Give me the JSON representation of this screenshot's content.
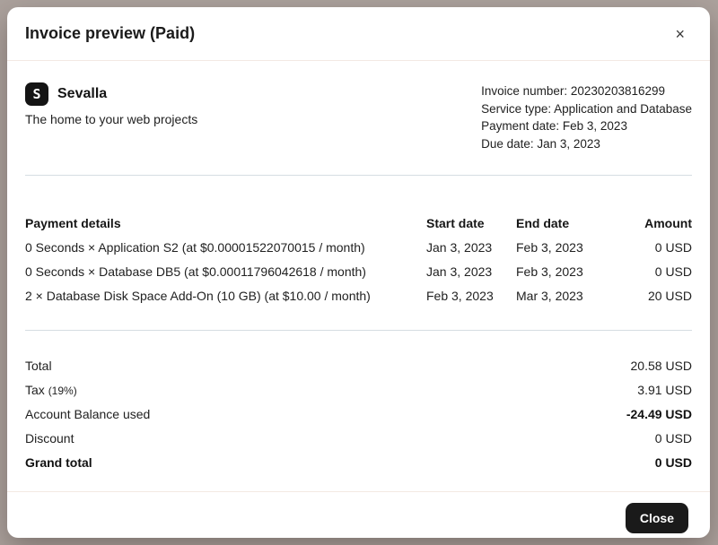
{
  "modal": {
    "title": "Invoice preview (Paid)",
    "close_icon": "×"
  },
  "brand": {
    "logo_glyph": "S",
    "name": "Sevalla",
    "tagline": "The home to your web projects"
  },
  "invoice_meta": {
    "lines": [
      "Invoice number: 20230203816299",
      "Service type: Application and Database",
      "Payment date: Feb 3, 2023",
      "Due date: Jan 3, 2023"
    ]
  },
  "table": {
    "headers": {
      "details": "Payment details",
      "start": "Start date",
      "end": "End date",
      "amount": "Amount"
    },
    "rows": [
      {
        "description": "0 Seconds × Application S2 (at $0.00001522070015 / month)",
        "start": "Jan 3, 2023",
        "end": "Feb 3, 2023",
        "amount": "0 USD"
      },
      {
        "description": "0 Seconds × Database DB5 (at $0.00011796042618 / month)",
        "start": "Jan 3, 2023",
        "end": "Feb 3, 2023",
        "amount": "0 USD"
      },
      {
        "description": "2 × Database Disk Space Add-On (10 GB) (at $10.00 / month)",
        "start": "Feb 3, 2023",
        "end": "Mar 3, 2023",
        "amount": "20 USD"
      }
    ]
  },
  "totals": [
    {
      "label": "Total",
      "sub": "",
      "value": "20.58 USD"
    },
    {
      "label": "Tax",
      "sub": "(19%)",
      "value": "3.91 USD"
    },
    {
      "label": "Account Balance used",
      "sub": "",
      "value": "-24.49 USD"
    },
    {
      "label": "Discount",
      "sub": "",
      "value": "0 USD"
    },
    {
      "label": "Grand total",
      "sub": "",
      "value": "0 USD"
    }
  ],
  "footer": {
    "close_label": "Close"
  },
  "colors": {
    "overlay_backdrop": "#aca29d",
    "button_bg": "#1a1a1a",
    "divider_warm": "#f3e9e3",
    "divider_cool": "#d6dde2"
  }
}
